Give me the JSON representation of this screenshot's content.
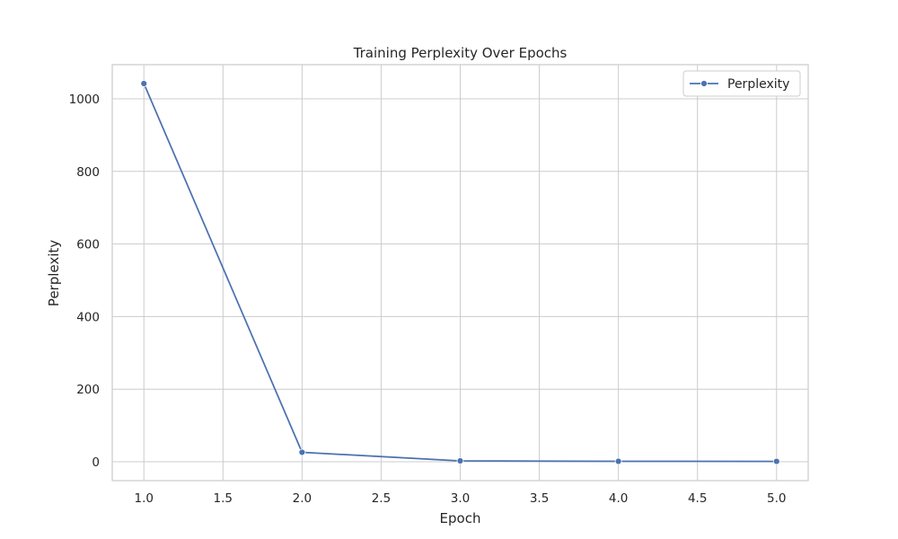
{
  "chart_data": {
    "type": "line",
    "title": "Training Perplexity Over Epochs",
    "xlabel": "Epoch",
    "ylabel": "Perplexity",
    "x": [
      1.0,
      2.0,
      3.0,
      4.0,
      5.0
    ],
    "series": [
      {
        "name": "Perplexity",
        "values": [
          1042,
          26,
          2.4,
          1.2,
          1.05
        ]
      }
    ],
    "xlim": [
      0.8,
      5.2
    ],
    "ylim": [
      -52,
      1094
    ],
    "xticks": [
      1.0,
      1.5,
      2.0,
      2.5,
      3.0,
      3.5,
      4.0,
      4.5,
      5.0
    ],
    "xtick_labels": [
      "1.0",
      "1.5",
      "2.0",
      "2.5",
      "3.0",
      "3.5",
      "4.0",
      "4.5",
      "5.0"
    ],
    "yticks": [
      0,
      200,
      400,
      600,
      800,
      1000
    ],
    "ytick_labels": [
      "0",
      "200",
      "400",
      "600",
      "800",
      "1000"
    ],
    "grid": true,
    "legend_position": "top-right",
    "colors": {
      "line": "#4c72b0",
      "grid": "#cccccc",
      "spine": "#cccccc",
      "text": "#262626"
    }
  }
}
